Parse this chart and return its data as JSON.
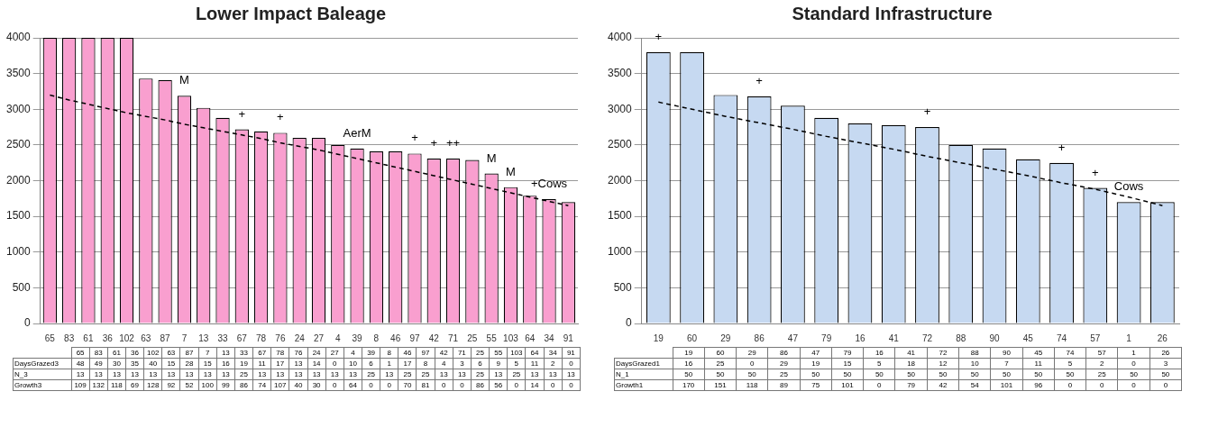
{
  "chart_data": [
    {
      "type": "bar",
      "title": "Lower Impact Baleage",
      "categories": [
        "65",
        "83",
        "61",
        "36",
        "102",
        "63",
        "87",
        "7",
        "13",
        "33",
        "67",
        "78",
        "76",
        "24",
        "27",
        "4",
        "39",
        "8",
        "46",
        "97",
        "42",
        "71",
        "25",
        "55",
        "103",
        "64",
        "34",
        "91"
      ],
      "series": [
        {
          "color": "#f99fcf",
          "values": [
            4000,
            4000,
            4000,
            4000,
            4000,
            3430,
            3410,
            3190,
            3020,
            2880,
            2720,
            2690,
            2670,
            2600,
            2600,
            2500,
            2450,
            2410,
            2410,
            2380,
            2310,
            2310,
            2290,
            2100,
            1910,
            1790,
            1740,
            1700
          ]
        },
        {
          "type": "line",
          "color": "#000000",
          "line_style": "dashed",
          "marker": "none",
          "values": [
            3200,
            3130,
            3070,
            3010,
            2950,
            2900,
            2850,
            2790,
            2740,
            2690,
            2640,
            2590,
            2530,
            2480,
            2430,
            2370,
            2310,
            2250,
            2190,
            2130,
            2070,
            2010,
            1950,
            1890,
            1830,
            1770,
            1710,
            1650
          ]
        }
      ],
      "ylim": [
        0,
        4000
      ],
      "yticks": [
        0,
        500,
        1000,
        1500,
        2000,
        2500,
        3000,
        3500,
        4000
      ],
      "grid": "y",
      "legend": false,
      "annotations": [
        {
          "text": "M",
          "x": "7",
          "y": 3190
        },
        {
          "text": "+",
          "x": "67",
          "y": 2720
        },
        {
          "text": "+",
          "x": "76",
          "y": 2670
        },
        {
          "text": "AerM",
          "x": "39",
          "y": 2450
        },
        {
          "text": "+",
          "x": "97",
          "y": 2380
        },
        {
          "text": "+",
          "x": "42",
          "y": 2310
        },
        {
          "text": "++",
          "x": "71",
          "y": 2310
        },
        {
          "text": "M",
          "x": "55",
          "y": 2100
        },
        {
          "text": "M",
          "x": "103",
          "y": 1910
        },
        {
          "text": "+Cows",
          "x": "34",
          "y": 1740
        },
        "DaysGrazed3 48 49 30 35 40 15 28 15 16 19 11 17 13 14 0 10 6 1 17 8 4 3 6 9 5 11 2 0",
        "N_3 13 13 13 13 13 13 13 13 13 25 13 13 13 13 13 13 25 13 25 25 13 13 25 13 25 13 13 13",
        "Growth3 109 132 118 69 128 92 52 100 99 86 74 107 40 30 0 64 0 0 70 81 0 0 86 56 0 14 0 0"
      ]
    },
    {
      "type": "bar",
      "title": "Standard Infrastructure",
      "categories": [
        "19",
        "60",
        "29",
        "86",
        "47",
        "79",
        "16",
        "41",
        "72",
        "88",
        "90",
        "45",
        "74",
        "57",
        "1",
        "26"
      ],
      "series": [
        {
          "color": "#c6d9f1",
          "values": [
            3800,
            3800,
            3200,
            3180,
            3050,
            2880,
            2800,
            2780,
            2750,
            2500,
            2450,
            2300,
            2250,
            1900,
            1700,
            1700
          ]
        },
        {
          "type": "line",
          "color": "#000000",
          "line_style": "dashed",
          "marker": "none",
          "values": [
            3100,
            3000,
            2900,
            2810,
            2720,
            2620,
            2530,
            2440,
            2340,
            2250,
            2160,
            2070,
            1970,
            1880,
            1770,
            1650
          ]
        }
      ],
      "ylim": [
        0,
        4000
      ],
      "yticks": [
        0,
        500,
        1000,
        1500,
        2000,
        2500,
        3000,
        3500,
        4000
      ],
      "grid": "y",
      "legend": false,
      "annotations": [
        {
          "text": "+",
          "x": "19",
          "y": 3800
        },
        {
          "text": "+",
          "x": "86",
          "y": 3180
        },
        {
          "text": "+",
          "x": "72",
          "y": 2750
        },
        {
          "text": "+",
          "x": "74",
          "y": 2250
        },
        {
          "text": "+",
          "x": "57",
          "y": 1900
        },
        {
          "text": "Cows",
          "x": "1",
          "y": 1700
        },
        "DaysGrazed1 16 25 0 29 19 15 5 18 12 10 7 11 5 2 0 3",
        "N_1 50 50 50 25 50 50 50 50 50 50 50 50 50 25 50 50",
        "Growth1 170 151 118 89 75 101 0 79 42 54 101 96 0 0 0 0"
      ]
    }
  ]
}
